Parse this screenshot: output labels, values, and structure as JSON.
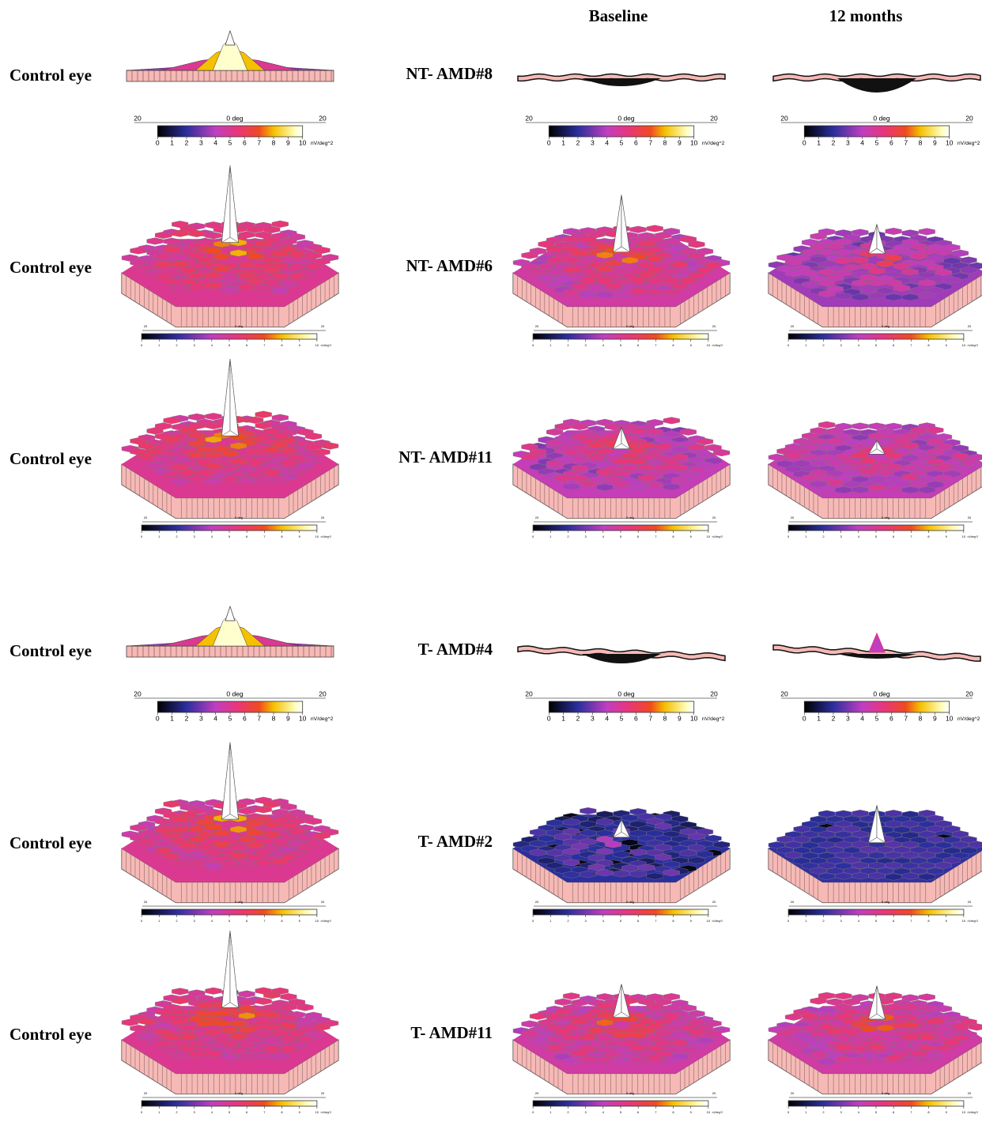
{
  "columns": [
    "Baseline",
    "12 months"
  ],
  "rows": [
    {
      "control_label": "Control eye",
      "patient_label": "NT- AMD#8"
    },
    {
      "control_label": "Control eye",
      "patient_label": "NT- AMD#6"
    },
    {
      "control_label": "Control eye",
      "patient_label": "NT- AMD#11"
    },
    {
      "control_label": "Control eye",
      "patient_label": "T- AMD#4"
    },
    {
      "control_label": "Control eye",
      "patient_label": "T- AMD#2"
    },
    {
      "control_label": "Control eye",
      "patient_label": "T- AMD#11"
    }
  ],
  "colorbar": {
    "scale_labels": [
      "20",
      "0 deg",
      "20"
    ],
    "ticks": [
      "0",
      "1",
      "2",
      "3",
      "4",
      "5",
      "6",
      "7",
      "8",
      "9",
      "10"
    ],
    "unit": "nV/deg^2"
  }
}
